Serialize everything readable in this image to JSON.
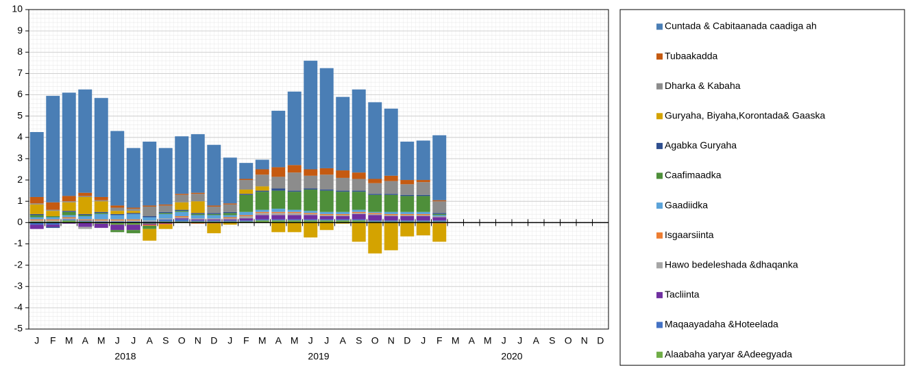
{
  "chart_data": {
    "type": "stacked_bar",
    "categories": [
      "J",
      "F",
      "M",
      "A",
      "M",
      "J",
      "J",
      "A",
      "S",
      "O",
      "N",
      "D",
      "J",
      "F",
      "M",
      "A",
      "M",
      "J",
      "J",
      "A",
      "S",
      "O",
      "N",
      "D",
      "J",
      "F",
      "M",
      "A",
      "M",
      "J",
      "J",
      "A",
      "S",
      "O",
      "N",
      "D"
    ],
    "year_labels": [
      "2018",
      "2019",
      "2020"
    ],
    "ylim": [
      -5,
      10
    ],
    "yticks": [
      -5,
      -4,
      -3,
      -2,
      -1,
      0,
      1,
      2,
      3,
      4,
      5,
      6,
      7,
      8,
      9,
      10
    ],
    "grid": true,
    "legend": "right",
    "series": [
      {
        "name": "Cuntada & Cabitaanada caadiga ah",
        "color": "#4a7eb5",
        "values": [
          3.05,
          5.0,
          4.85,
          4.85,
          4.65,
          3.5,
          2.8,
          3.0,
          2.65,
          2.7,
          2.75,
          2.85,
          2.15,
          0.75,
          0.45,
          2.65,
          3.45,
          5.1,
          4.7,
          3.45,
          3.9,
          3.6,
          3.15,
          1.8,
          1.85,
          3.05,
          null,
          null,
          null,
          null,
          null,
          null,
          null,
          null,
          null,
          null
        ]
      },
      {
        "name": "Tubaakadda",
        "color": "#c55a11",
        "values": [
          0.3,
          0.35,
          0.25,
          0.15,
          0.15,
          0.1,
          0.05,
          0.05,
          0.05,
          0.05,
          0.05,
          0.05,
          0.05,
          0.05,
          0.25,
          0.45,
          0.35,
          0.3,
          0.3,
          0.35,
          0.3,
          0.2,
          0.25,
          0.2,
          0.1,
          0.05,
          null,
          null,
          null,
          null,
          null,
          null,
          null,
          null,
          null,
          null
        ]
      },
      {
        "name": "Dharka & Kabaha",
        "color": "#8c8c8c",
        "values": [
          0.05,
          0.05,
          0.05,
          0.05,
          0.05,
          0.15,
          0.1,
          0.45,
          0.3,
          0.35,
          0.35,
          0.3,
          0.35,
          0.45,
          0.55,
          0.55,
          0.85,
          0.6,
          0.7,
          0.6,
          0.55,
          0.5,
          0.6,
          0.5,
          0.6,
          0.55,
          null,
          null,
          null,
          null,
          null,
          null,
          null,
          null,
          null,
          null
        ]
      },
      {
        "name": "Guryaha, Biyaha,Korontada& Gaaska",
        "color": "#d4a300",
        "values": [
          0.45,
          0.25,
          0.4,
          0.8,
          0.5,
          0.15,
          0.1,
          -0.55,
          -0.2,
          0.35,
          0.55,
          -0.45,
          -0.1,
          0.2,
          0.2,
          -0.45,
          -0.45,
          -0.7,
          -0.35,
          -0.05,
          -0.9,
          -1.45,
          -1.3,
          -0.65,
          -0.6,
          -0.85,
          null,
          null,
          null,
          null,
          null,
          null,
          null,
          null,
          null,
          null
        ]
      },
      {
        "name": "Agabka Guryaha",
        "color": "#2f4f8f",
        "values": [
          0.05,
          -0.05,
          0.05,
          0.05,
          0.05,
          0.05,
          0.05,
          0.05,
          0.05,
          0.05,
          0.05,
          0.05,
          0.05,
          0.05,
          0.05,
          0.1,
          0.05,
          0.05,
          0.05,
          0.05,
          0.05,
          0.05,
          0.05,
          0.05,
          0.05,
          0.05,
          null,
          null,
          null,
          null,
          null,
          null,
          null,
          null,
          null,
          null
        ]
      },
      {
        "name": "Caafimaadka",
        "color": "#4e8f3a",
        "values": [
          0.1,
          0.05,
          0.15,
          0.05,
          0.05,
          -0.1,
          -0.15,
          -0.15,
          0.05,
          0.05,
          0.05,
          0.05,
          0.1,
          0.8,
          0.85,
          0.85,
          0.85,
          1.0,
          1.0,
          0.95,
          0.85,
          0.8,
          0.8,
          0.75,
          0.75,
          0.05,
          null,
          null,
          null,
          null,
          null,
          null,
          null,
          null,
          null,
          null
        ]
      },
      {
        "name": "Gaadiidka",
        "color": "#5ba3d9",
        "values": [
          0.1,
          0.1,
          0.1,
          0.15,
          0.25,
          0.2,
          0.25,
          0.15,
          0.2,
          0.2,
          0.15,
          0.15,
          0.1,
          0.15,
          0.1,
          0.15,
          0.1,
          0.1,
          0.1,
          0.1,
          0.1,
          0.05,
          0.1,
          0.1,
          0.1,
          0.05,
          null,
          null,
          null,
          null,
          null,
          null,
          null,
          null,
          null,
          null
        ]
      },
      {
        "name": "Isgaarsiinta",
        "color": "#ed7d31",
        "values": [
          0.05,
          0.05,
          0.05,
          0.05,
          0.05,
          0.05,
          0.05,
          -0.05,
          -0.05,
          0.05,
          -0.05,
          -0.05,
          0.05,
          0.05,
          0.05,
          0.05,
          0.05,
          0.05,
          0.05,
          0.05,
          0.05,
          0.05,
          0.05,
          0.05,
          0.05,
          -0.05,
          null,
          null,
          null,
          null,
          null,
          null,
          null,
          null,
          null,
          null
        ]
      },
      {
        "name": "Hawo bedeleshada &dhaqanka",
        "color": "#a6a6a6",
        "values": [
          0.05,
          0.05,
          0.05,
          -0.1,
          0.05,
          0.05,
          0.05,
          0.05,
          0.05,
          0.05,
          0.05,
          0.05,
          0.05,
          0.1,
          0.1,
          0.1,
          0.1,
          0.05,
          0.05,
          0.05,
          0.05,
          0.05,
          0.05,
          0.05,
          0.05,
          0.05,
          null,
          null,
          null,
          null,
          null,
          null,
          null,
          null,
          null,
          null
        ]
      },
      {
        "name": "Tacliinta",
        "color": "#7030a0",
        "values": [
          -0.2,
          -0.1,
          -0.05,
          -0.2,
          -0.2,
          -0.25,
          -0.25,
          -0.05,
          -0.05,
          0.05,
          0.05,
          0.05,
          0.05,
          0.1,
          0.2,
          0.2,
          0.2,
          0.2,
          0.15,
          0.15,
          0.25,
          0.25,
          0.2,
          0.2,
          0.2,
          0.15,
          null,
          null,
          null,
          null,
          null,
          null,
          null,
          null,
          null,
          null
        ]
      },
      {
        "name": "Maqaayadaha &Hoteelada",
        "color": "#4472c4",
        "values": [
          -0.1,
          -0.1,
          0.05,
          0.05,
          0.05,
          0.05,
          0.05,
          0.05,
          0.1,
          0.1,
          0.05,
          0.05,
          0.05,
          0.05,
          0.05,
          0.05,
          0.05,
          0.05,
          0.05,
          0.05,
          0.05,
          0.05,
          0.05,
          0.05,
          0.05,
          0.05,
          null,
          null,
          null,
          null,
          null,
          null,
          null,
          null,
          null,
          null
        ]
      },
      {
        "name": "Alaabaha yaryar &Adeegyada",
        "color": "#70ad47",
        "values": [
          0.05,
          0.05,
          0.1,
          0.05,
          -0.05,
          -0.1,
          -0.1,
          -0.05,
          0.05,
          0.05,
          0.05,
          0.05,
          0.05,
          0.05,
          0.1,
          0.1,
          0.1,
          0.1,
          0.1,
          0.1,
          0.1,
          0.05,
          0.05,
          0.05,
          0.05,
          0.05,
          null,
          null,
          null,
          null,
          null,
          null,
          null,
          null,
          null,
          null
        ]
      }
    ]
  }
}
